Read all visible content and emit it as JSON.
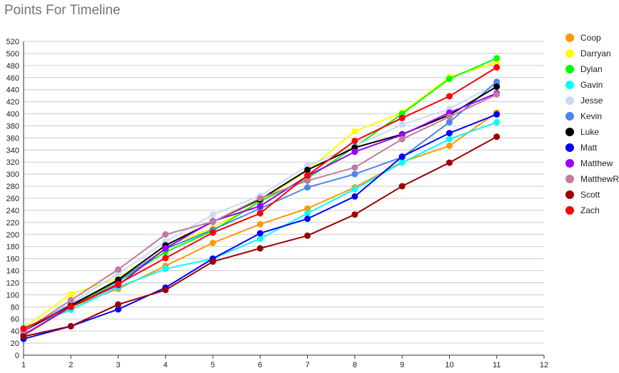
{
  "chart_data": {
    "type": "line",
    "title": "Points For Timeline",
    "xlabel": "",
    "ylabel": "",
    "xlim": [
      1,
      12
    ],
    "ylim": [
      0,
      520
    ],
    "x_ticks": [
      1,
      2,
      3,
      4,
      5,
      6,
      7,
      8,
      9,
      10,
      11,
      12
    ],
    "y_ticks": [
      0,
      20,
      40,
      60,
      80,
      100,
      120,
      140,
      160,
      180,
      200,
      220,
      240,
      260,
      280,
      300,
      320,
      340,
      360,
      380,
      400,
      420,
      440,
      460,
      480,
      500,
      520
    ],
    "grid": true,
    "legend_position": "right",
    "x": [
      1,
      2,
      3,
      4,
      5,
      6,
      7,
      8,
      9,
      10,
      11
    ],
    "series": [
      {
        "name": "Coop",
        "color": "#ff9900",
        "values": [
          32,
          80,
          110,
          148,
          186,
          217,
          243,
          278,
          320,
          347,
          402
        ]
      },
      {
        "name": "Darryan",
        "color": "#ffff00",
        "values": [
          45,
          101,
          128,
          180,
          211,
          255,
          306,
          371,
          402,
          461,
          485
        ]
      },
      {
        "name": "Dylan",
        "color": "#00ff00",
        "values": [
          44,
          80,
          122,
          171,
          206,
          255,
          293,
          345,
          400,
          458,
          492
        ]
      },
      {
        "name": "Gavin",
        "color": "#00ffff",
        "values": [
          45,
          75,
          113,
          143,
          160,
          193,
          235,
          275,
          319,
          358,
          386
        ]
      },
      {
        "name": "Jesse",
        "color": "#c9daf8",
        "values": [
          40,
          86,
          135,
          188,
          233,
          264,
          314,
          347,
          382,
          408,
          450
        ]
      },
      {
        "name": "Kevin",
        "color": "#4a86e8",
        "values": [
          42,
          84,
          123,
          176,
          208,
          243,
          278,
          300,
          328,
          386,
          453
        ]
      },
      {
        "name": "Luke",
        "color": "#000000",
        "values": [
          40,
          82,
          125,
          182,
          221,
          258,
          307,
          344,
          366,
          398,
          445
        ]
      },
      {
        "name": "Matt",
        "color": "#0000ff",
        "values": [
          27,
          48,
          76,
          112,
          160,
          202,
          226,
          263,
          329,
          368,
          399
        ]
      },
      {
        "name": "Matthew",
        "color": "#9900ff",
        "values": [
          34,
          80,
          116,
          177,
          222,
          247,
          297,
          337,
          365,
          402,
          434
        ]
      },
      {
        "name": "MatthewR",
        "color": "#c27ba0",
        "values": [
          40,
          91,
          142,
          200,
          221,
          260,
          289,
          311,
          358,
          395,
          432
        ]
      },
      {
        "name": "Scott",
        "color": "#990000",
        "values": [
          31,
          48,
          84,
          108,
          155,
          177,
          198,
          233,
          280,
          319,
          362
        ]
      },
      {
        "name": "Zach",
        "color": "#ff0000",
        "values": [
          44,
          80,
          118,
          161,
          203,
          235,
          298,
          355,
          393,
          429,
          477
        ]
      }
    ]
  }
}
